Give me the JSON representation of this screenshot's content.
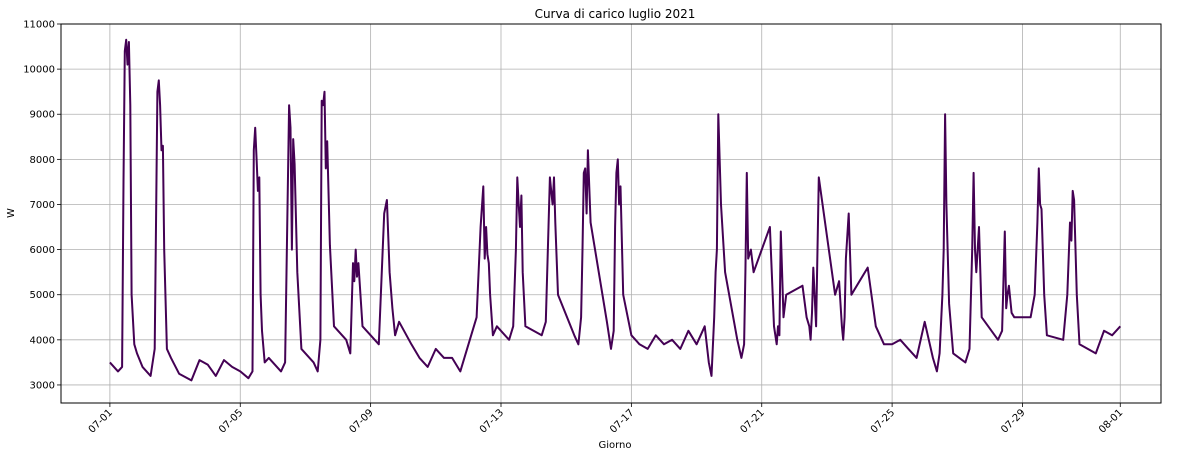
{
  "chart_data": {
    "type": "line",
    "title": "Curva di carico luglio 2021",
    "xlabel": "Giorno",
    "ylabel": "W",
    "x_range": [
      "2021-06-29T12:00",
      "2021-08-02T06:00"
    ],
    "ylim": [
      2600,
      11000
    ],
    "grid": true,
    "line_color": "#440154",
    "x_ticks": [
      {
        "date": "2021-07-01",
        "label": "07-01"
      },
      {
        "date": "2021-07-05",
        "label": "07-05"
      },
      {
        "date": "2021-07-09",
        "label": "07-09"
      },
      {
        "date": "2021-07-13",
        "label": "07-13"
      },
      {
        "date": "2021-07-17",
        "label": "07-17"
      },
      {
        "date": "2021-07-21",
        "label": "07-21"
      },
      {
        "date": "2021-07-25",
        "label": "07-25"
      },
      {
        "date": "2021-07-29",
        "label": "07-29"
      },
      {
        "date": "2021-08-01",
        "label": "08-01"
      }
    ],
    "y_ticks": [
      3000,
      4000,
      5000,
      6000,
      7000,
      8000,
      9000,
      10000,
      11000
    ],
    "series": [
      {
        "x": [
          "2021-07-01T00:00",
          "2021-07-01T06:00",
          "2021-07-01T09:00",
          "2021-07-01T10:00",
          "2021-07-01T11:00",
          "2021-07-01T12:00",
          "2021-07-01T13:00",
          "2021-07-01T14:00",
          "2021-07-01T15:00",
          "2021-07-01T16:00",
          "2021-07-01T18:00",
          "2021-07-01T20:00",
          "2021-07-02T00:00",
          "2021-07-02T06:00",
          "2021-07-02T09:00",
          "2021-07-02T11:00",
          "2021-07-02T12:00",
          "2021-07-02T13:00",
          "2021-07-02T14:00",
          "2021-07-02T15:00",
          "2021-07-02T16:00",
          "2021-07-02T18:00",
          "2021-07-02T21:00",
          "2021-07-03T03:00",
          "2021-07-03T12:00",
          "2021-07-03T18:00",
          "2021-07-04T00:00",
          "2021-07-04T06:00",
          "2021-07-04T12:00",
          "2021-07-04T18:00",
          "2021-07-05T00:00",
          "2021-07-05T06:00",
          "2021-07-05T09:00",
          "2021-07-05T10:00",
          "2021-07-05T11:00",
          "2021-07-05T12:00",
          "2021-07-05T13:00",
          "2021-07-05T14:00",
          "2021-07-05T15:00",
          "2021-07-05T16:00",
          "2021-07-05T18:00",
          "2021-07-05T21:00",
          "2021-07-06T06:00",
          "2021-07-06T09:00",
          "2021-07-06T12:00",
          "2021-07-06T13:00",
          "2021-07-06T14:00",
          "2021-07-06T15:00",
          "2021-07-06T16:00",
          "2021-07-06T18:00",
          "2021-07-06T21:00",
          "2021-07-07T06:00",
          "2021-07-07T09:00",
          "2021-07-07T11:00",
          "2021-07-07T12:00",
          "2021-07-07T13:00",
          "2021-07-07T14:00",
          "2021-07-07T15:00",
          "2021-07-07T16:00",
          "2021-07-07T18:00",
          "2021-07-07T21:00",
          "2021-07-08T06:00",
          "2021-07-08T09:00",
          "2021-07-08T11:00",
          "2021-07-08T12:00",
          "2021-07-08T13:00",
          "2021-07-08T14:00",
          "2021-07-08T15:00",
          "2021-07-08T18:00",
          "2021-07-09T06:00",
          "2021-07-09T10:00",
          "2021-07-09T12:00",
          "2021-07-09T14:00",
          "2021-07-09T16:00",
          "2021-07-09T18:00",
          "2021-07-09T21:00",
          "2021-07-10T06:00",
          "2021-07-10T12:00",
          "2021-07-10T18:00",
          "2021-07-11T00:00",
          "2021-07-11T06:00",
          "2021-07-11T12:00",
          "2021-07-11T18:00",
          "2021-07-12T06:00",
          "2021-07-12T09:00",
          "2021-07-12T11:00",
          "2021-07-12T12:00",
          "2021-07-12T13:00",
          "2021-07-12T14:00",
          "2021-07-12T15:00",
          "2021-07-12T16:00",
          "2021-07-12T18:00",
          "2021-07-12T21:00",
          "2021-07-13T06:00",
          "2021-07-13T09:00",
          "2021-07-13T11:00",
          "2021-07-13T12:00",
          "2021-07-13T13:00",
          "2021-07-13T14:00",
          "2021-07-13T15:00",
          "2021-07-13T16:00",
          "2021-07-13T18:00",
          "2021-07-14T06:00",
          "2021-07-14T09:00",
          "2021-07-14T11:00",
          "2021-07-14T12:00",
          "2021-07-14T13:00",
          "2021-07-14T14:00",
          "2021-07-14T15:00",
          "2021-07-14T16:00",
          "2021-07-14T18:00",
          "2021-07-15T06:00",
          "2021-07-15T09:00",
          "2021-07-15T11:00",
          "2021-07-15T12:00",
          "2021-07-15T13:00",
          "2021-07-15T14:00",
          "2021-07-15T15:00",
          "2021-07-15T16:00",
          "2021-07-15T18:00",
          "2021-07-16T06:00",
          "2021-07-16T09:00",
          "2021-07-16T11:00",
          "2021-07-16T12:00",
          "2021-07-16T13:00",
          "2021-07-16T14:00",
          "2021-07-16T15:00",
          "2021-07-16T16:00",
          "2021-07-16T18:00",
          "2021-07-17T00:00",
          "2021-07-17T06:00",
          "2021-07-17T12:00",
          "2021-07-17T18:00",
          "2021-07-18T00:00",
          "2021-07-18T06:00",
          "2021-07-18T12:00",
          "2021-07-18T18:00",
          "2021-07-19T00:00",
          "2021-07-19T06:00",
          "2021-07-19T09:00",
          "2021-07-19T11:00",
          "2021-07-19T13:00",
          "2021-07-19T14:00",
          "2021-07-19T15:00",
          "2021-07-19T16:00",
          "2021-07-19T18:00",
          "2021-07-19T21:00",
          "2021-07-20T06:00",
          "2021-07-20T09:00",
          "2021-07-20T11:00",
          "2021-07-20T12:00",
          "2021-07-20T13:00",
          "2021-07-20T14:00",
          "2021-07-20T16:00",
          "2021-07-20T18:00",
          "2021-07-21T06:00",
          "2021-07-21T09:00",
          "2021-07-21T11:00",
          "2021-07-21T12:00",
          "2021-07-21T13:00",
          "2021-07-21T14:00",
          "2021-07-21T16:00",
          "2021-07-21T18:00",
          "2021-07-22T06:00",
          "2021-07-22T09:00",
          "2021-07-22T11:00",
          "2021-07-22T12:00",
          "2021-07-22T13:00",
          "2021-07-22T14:00",
          "2021-07-22T16:00",
          "2021-07-22T18:00",
          "2021-07-23T06:00",
          "2021-07-23T09:00",
          "2021-07-23T11:00",
          "2021-07-23T12:00",
          "2021-07-23T13:00",
          "2021-07-23T14:00",
          "2021-07-23T16:00",
          "2021-07-23T18:00",
          "2021-07-24T06:00",
          "2021-07-24T12:00",
          "2021-07-24T18:00",
          "2021-07-25T00:00",
          "2021-07-25T06:00",
          "2021-07-25T12:00",
          "2021-07-25T18:00",
          "2021-07-26T00:00",
          "2021-07-26T06:00",
          "2021-07-26T09:00",
          "2021-07-26T11:00",
          "2021-07-26T13:00",
          "2021-07-26T14:00",
          "2021-07-26T15:00",
          "2021-07-26T16:00",
          "2021-07-26T18:00",
          "2021-07-26T21:00",
          "2021-07-27T06:00",
          "2021-07-27T09:00",
          "2021-07-27T11:00",
          "2021-07-27T12:00",
          "2021-07-27T13:00",
          "2021-07-27T14:00",
          "2021-07-27T16:00",
          "2021-07-27T18:00",
          "2021-07-28T06:00",
          "2021-07-28T09:00",
          "2021-07-28T11:00",
          "2021-07-28T12:00",
          "2021-07-28T13:00",
          "2021-07-28T14:00",
          "2021-07-28T16:00",
          "2021-07-28T18:00",
          "2021-07-29T06:00",
          "2021-07-29T09:00",
          "2021-07-29T11:00",
          "2021-07-29T12:00",
          "2021-07-29T13:00",
          "2021-07-29T14:00",
          "2021-07-29T16:00",
          "2021-07-29T18:00",
          "2021-07-30T06:00",
          "2021-07-30T09:00",
          "2021-07-30T11:00",
          "2021-07-30T12:00",
          "2021-07-30T13:00",
          "2021-07-30T14:00",
          "2021-07-30T16:00",
          "2021-07-30T18:00",
          "2021-07-31T06:00",
          "2021-07-31T12:00",
          "2021-07-31T18:00",
          "2021-08-01T00:00"
        ],
        "y": [
          3500,
          3300,
          3400,
          7500,
          10400,
          10650,
          10100,
          10600,
          9200,
          5000,
          3900,
          3700,
          3400,
          3200,
          3800,
          9500,
          9750,
          9200,
          8200,
          8300,
          6000,
          3800,
          3600,
          3250,
          3100,
          3550,
          3450,
          3200,
          3550,
          3400,
          3300,
          3150,
          3300,
          8200,
          8700,
          8000,
          7300,
          7600,
          5000,
          4200,
          3500,
          3600,
          3300,
          3500,
          9200,
          8700,
          6000,
          8450,
          7900,
          5500,
          3800,
          3500,
          3300,
          4000,
          9300,
          9200,
          9500,
          7800,
          8400,
          6100,
          4300,
          4000,
          3700,
          5700,
          5300,
          6000,
          5400,
          5700,
          4300,
          3900,
          6800,
          7100,
          5500,
          4700,
          4100,
          4400,
          3900,
          3600,
          3400,
          3800,
          3600,
          3600,
          3300,
          4500,
          6500,
          7400,
          5800,
          6500,
          5900,
          5700,
          5000,
          4100,
          4300,
          4000,
          4300,
          6000,
          7600,
          7000,
          6500,
          7200,
          5500,
          4300,
          4100,
          4400,
          6500,
          7600,
          7300,
          7000,
          7600,
          6600,
          5000,
          4100,
          3900,
          4500,
          6000,
          7700,
          7800,
          6800,
          8200,
          6600,
          4400,
          3800,
          4200,
          6500,
          7700,
          8000,
          7000,
          7400,
          5000,
          4100,
          3900,
          3800,
          4100,
          3900,
          4000,
          3800,
          4200,
          3900,
          4300,
          3500,
          3200,
          4500,
          5500,
          6000,
          9000,
          7000,
          5500,
          4000,
          3600,
          3900,
          5500,
          7700,
          5800,
          6000,
          5500,
          6500,
          4300,
          3900,
          4300,
          4100,
          6400,
          4500,
          5000,
          5200,
          4500,
          4300,
          4000,
          4600,
          5600,
          4300,
          7600,
          5000,
          5300,
          4300,
          4000,
          4500,
          5800,
          6800,
          5000,
          5600,
          4300,
          3900,
          3900,
          4000,
          3800,
          3600,
          4400,
          3600,
          3300,
          3700,
          5000,
          6000,
          9000,
          7000,
          4800,
          3700,
          3500,
          3800,
          6000,
          7700,
          6000,
          5500,
          6500,
          4500,
          4000,
          4200,
          6400,
          4700,
          5000,
          5200,
          4600,
          4500,
          4500,
          5000,
          6600,
          7800,
          7000,
          6900,
          5000,
          4100,
          4000,
          5000,
          6600,
          6200,
          7300,
          7100,
          5000,
          3900,
          3700,
          4200,
          4100,
          4300
        ]
      }
    ]
  }
}
